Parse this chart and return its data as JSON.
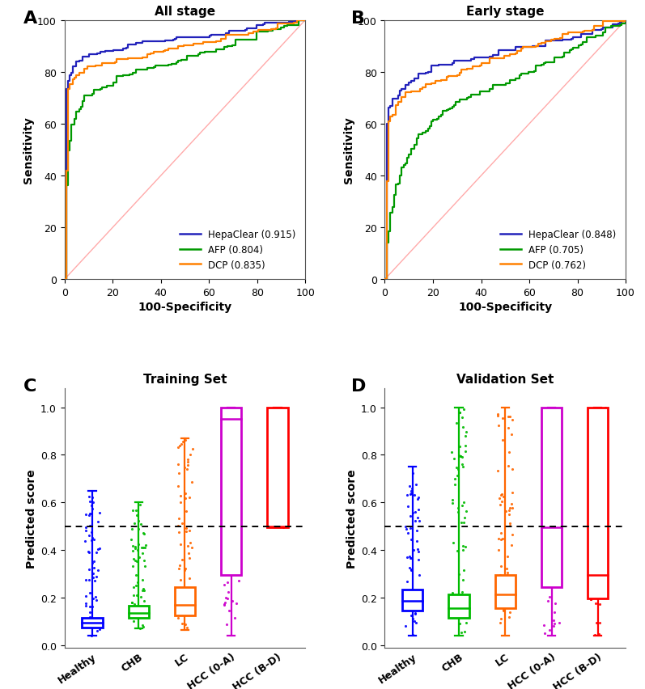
{
  "panel_A_title": "All stage",
  "panel_B_title": "Early stage",
  "panel_C_title": "Training Set",
  "panel_D_title": "Validation Set",
  "roc_xlabel": "100-Specificity",
  "roc_ylabel": "Sensitivity",
  "box_ylabel": "Predicted score",
  "panel_labels": [
    "A",
    "B",
    "C",
    "D"
  ],
  "roc_A": {
    "HepaClear": {
      "auc": 0.915,
      "color": "#2222BB"
    },
    "AFP": {
      "auc": 0.804,
      "color": "#009900"
    },
    "DCP": {
      "auc": 0.835,
      "color": "#FF8000"
    }
  },
  "roc_B": {
    "HepaClear": {
      "auc": 0.848,
      "color": "#2222BB"
    },
    "AFP": {
      "auc": 0.705,
      "color": "#009900"
    },
    "DCP": {
      "auc": 0.762,
      "color": "#FF8000"
    }
  },
  "box_categories": [
    "Healthy",
    "CHB",
    "LC",
    "HCC (0-A)",
    "HCC (B-D)"
  ],
  "box_colors": [
    "#0000FF",
    "#00BB00",
    "#FF6600",
    "#CC00CC",
    "#FF0000"
  ],
  "training_boxes": {
    "Healthy": {
      "median": 0.095,
      "q1": 0.075,
      "q3": 0.115,
      "wlo": 0.04,
      "whi": 0.65
    },
    "CHB": {
      "median": 0.135,
      "q1": 0.115,
      "q3": 0.165,
      "wlo": 0.07,
      "whi": 0.6
    },
    "LC": {
      "median": 0.17,
      "q1": 0.125,
      "q3": 0.245,
      "wlo": 0.065,
      "whi": 0.87
    },
    "HCC_0A": {
      "median": 0.95,
      "q1": 0.295,
      "q3": 1.0,
      "wlo": 0.04,
      "whi": 1.0
    },
    "HCC_BD": {
      "median": 0.5,
      "q1": 0.495,
      "q3": 1.0,
      "wlo": 0.495,
      "whi": 1.0
    }
  },
  "validation_boxes": {
    "Healthy": {
      "median": 0.185,
      "q1": 0.145,
      "q3": 0.235,
      "wlo": 0.04,
      "whi": 0.75
    },
    "CHB": {
      "median": 0.155,
      "q1": 0.115,
      "q3": 0.215,
      "wlo": 0.04,
      "whi": 1.0
    },
    "LC": {
      "median": 0.215,
      "q1": 0.155,
      "q3": 0.295,
      "wlo": 0.04,
      "whi": 1.0
    },
    "HCC_0A": {
      "median": 0.495,
      "q1": 0.245,
      "q3": 1.0,
      "wlo": 0.04,
      "whi": 1.0
    },
    "HCC_BD": {
      "median": 0.295,
      "q1": 0.195,
      "q3": 1.0,
      "wlo": 0.04,
      "whi": 1.0
    }
  },
  "background_color": "#FFFFFF",
  "dotted_line_y": 0.5,
  "ref_line_color": "#FFAAAA",
  "roc_xticks": [
    0,
    20,
    40,
    60,
    80,
    100
  ],
  "roc_yticks": [
    0,
    20,
    40,
    60,
    80,
    100
  ]
}
